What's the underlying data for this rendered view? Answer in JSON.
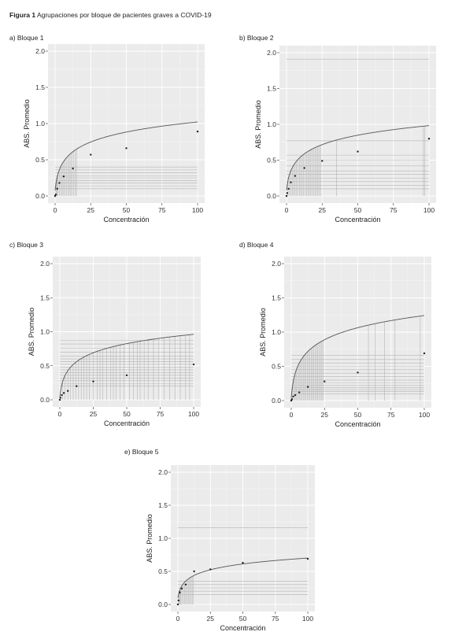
{
  "figure": {
    "title_bold": "Figura 1",
    "title_rest": " Agrupaciones por bloque de pacientes graves a COVID-19"
  },
  "colors": {
    "panel_bg": "#ebebeb",
    "grid_major": "#ffffff",
    "curve": "#555555",
    "cluster_lines": "#b4b4b4",
    "points": "#222222"
  },
  "chart_data": [
    {
      "panel_label": "a) Bloque 1",
      "type": "scatter",
      "xlabel": "Concentración",
      "ylabel": "ABS. Promedio",
      "xlim": [
        0,
        100
      ],
      "ylim": [
        0,
        2.0
      ],
      "xticks": [
        0,
        25,
        50,
        75,
        100
      ],
      "yticks": [
        "0.0",
        "0.5",
        "1.0",
        "1.5",
        "2.0"
      ],
      "grid": true,
      "points": [
        [
          0,
          0.0
        ],
        [
          0.5,
          0.02
        ],
        [
          1.5,
          0.1
        ],
        [
          3,
          0.18
        ],
        [
          6,
          0.27
        ],
        [
          12.5,
          0.38
        ],
        [
          25,
          0.57
        ],
        [
          50,
          0.66
        ],
        [
          100,
          0.89
        ]
      ],
      "fit": {
        "a": 0.08,
        "b": 0.47
      },
      "cluster_h": [
        0.1,
        0.14,
        0.18,
        0.21,
        0.25,
        0.28,
        0.32,
        0.36,
        0.4
      ],
      "cluster_v": [
        0.5,
        1,
        1.5,
        2,
        3,
        4,
        5,
        6,
        7,
        8,
        9,
        10,
        11,
        12,
        13,
        14,
        15
      ]
    },
    {
      "panel_label": "b) Bloque 2",
      "type": "scatter",
      "xlabel": "Concentración",
      "ylabel": "ABS. Promedio",
      "xlim": [
        0,
        100
      ],
      "ylim": [
        0,
        2.0
      ],
      "xticks": [
        0,
        25,
        50,
        75,
        100
      ],
      "yticks": [
        "0.0",
        "0.5",
        "1.0",
        "1.5",
        "2.0"
      ],
      "grid": true,
      "points": [
        [
          0,
          0.0
        ],
        [
          0.5,
          0.04
        ],
        [
          1.5,
          0.1
        ],
        [
          3,
          0.19
        ],
        [
          6,
          0.28
        ],
        [
          12.5,
          0.39
        ],
        [
          25,
          0.49
        ],
        [
          50,
          0.62
        ],
        [
          100,
          0.8
        ]
      ],
      "fit": {
        "a": 0.08,
        "b": 0.45
      },
      "cluster_h": [
        0.1,
        0.15,
        0.2,
        0.25,
        0.3,
        0.35,
        0.42,
        0.5,
        0.57,
        0.77,
        1.91
      ],
      "cluster_v": [
        1,
        2,
        3,
        4,
        5,
        6,
        7,
        8,
        9,
        10,
        11,
        12,
        13,
        14,
        15,
        16,
        17,
        18,
        19,
        20,
        21,
        22,
        23,
        24,
        35,
        96,
        97
      ]
    },
    {
      "panel_label": "c) Bloque 3",
      "type": "scatter",
      "xlabel": "Concentración",
      "ylabel": "ABS. Promedio",
      "xlim": [
        0,
        100
      ],
      "ylim": [
        0,
        2.0
      ],
      "xticks": [
        0,
        25,
        50,
        75,
        100
      ],
      "yticks": [
        "0.0",
        "0.5",
        "1.0",
        "1.5",
        "2.0"
      ],
      "grid": true,
      "points": [
        [
          0,
          0.0
        ],
        [
          0.5,
          0.03
        ],
        [
          1.5,
          0.07
        ],
        [
          3,
          0.1
        ],
        [
          6,
          0.13
        ],
        [
          12.5,
          0.2
        ],
        [
          25,
          0.27
        ],
        [
          50,
          0.36
        ],
        [
          100,
          0.52
        ]
      ],
      "fit": {
        "a": 0.04,
        "b": 0.46
      },
      "cluster_h": [
        0.2,
        0.24,
        0.28,
        0.32,
        0.36,
        0.4,
        0.44,
        0.48,
        0.52,
        0.56,
        0.6,
        0.64,
        0.7,
        0.76,
        0.82,
        0.87
      ],
      "cluster_v": [
        2,
        4,
        6,
        8,
        10,
        12,
        14,
        16,
        18,
        20,
        22,
        25,
        28,
        30,
        32,
        35,
        38,
        40,
        42,
        45,
        48,
        52,
        55,
        58,
        60,
        63,
        66,
        70,
        74,
        78,
        82,
        86,
        90,
        94,
        97
      ]
    },
    {
      "panel_label": "d) Bloque 4",
      "type": "scatter",
      "xlabel": "Concentración",
      "ylabel": "ABS. Promedio",
      "xlim": [
        0,
        100
      ],
      "ylim": [
        0,
        2.0
      ],
      "xticks": [
        0,
        25,
        50,
        75,
        100
      ],
      "yticks": [
        "0.0",
        "0.5",
        "1.0",
        "1.5",
        "2.0"
      ],
      "grid": true,
      "points": [
        [
          0,
          0.0
        ],
        [
          0.5,
          0.02
        ],
        [
          1.5,
          0.06
        ],
        [
          3,
          0.08
        ],
        [
          6,
          0.12
        ],
        [
          12.5,
          0.2
        ],
        [
          25,
          0.28
        ],
        [
          50,
          0.41
        ],
        [
          100,
          0.69
        ]
      ],
      "fit": {
        "a": 0.04,
        "b": 0.6
      },
      "cluster_h": [
        0.1,
        0.13,
        0.16,
        0.19,
        0.22,
        0.26,
        0.3,
        0.35,
        0.4,
        0.45,
        0.5,
        0.55,
        0.6,
        0.66
      ],
      "cluster_v": [
        1,
        2,
        3,
        4,
        5,
        6,
        7,
        8,
        9,
        10,
        11,
        12,
        13,
        14,
        15,
        16,
        17,
        18,
        19,
        20,
        21,
        22,
        23,
        24,
        58,
        63,
        70,
        78,
        97
      ]
    },
    {
      "panel_label": "e) Bloque 5",
      "type": "scatter",
      "xlabel": "Concentración",
      "ylabel": "ABS. Promedio",
      "xlim": [
        0,
        100
      ],
      "ylim": [
        0,
        2.0
      ],
      "xticks": [
        0,
        25,
        50,
        75,
        100
      ],
      "yticks": [
        "0.0",
        "0.5",
        "1.0",
        "1.5",
        "2.0"
      ],
      "grid": true,
      "points": [
        [
          0,
          0.0
        ],
        [
          0.5,
          0.06
        ],
        [
          1.5,
          0.18
        ],
        [
          3,
          0.24
        ],
        [
          6,
          0.3
        ],
        [
          12.5,
          0.5
        ],
        [
          25,
          0.53
        ],
        [
          50,
          0.63
        ],
        [
          100,
          0.69
        ]
      ],
      "fit": {
        "a": 0.1,
        "b": 0.3
      },
      "cluster_h": [
        0.15,
        0.2,
        0.25,
        0.3,
        0.35,
        1.16
      ],
      "cluster_v": [
        0.5,
        1,
        1.5,
        2,
        3,
        4,
        5,
        6,
        7,
        8,
        9,
        10,
        11,
        12
      ]
    }
  ]
}
